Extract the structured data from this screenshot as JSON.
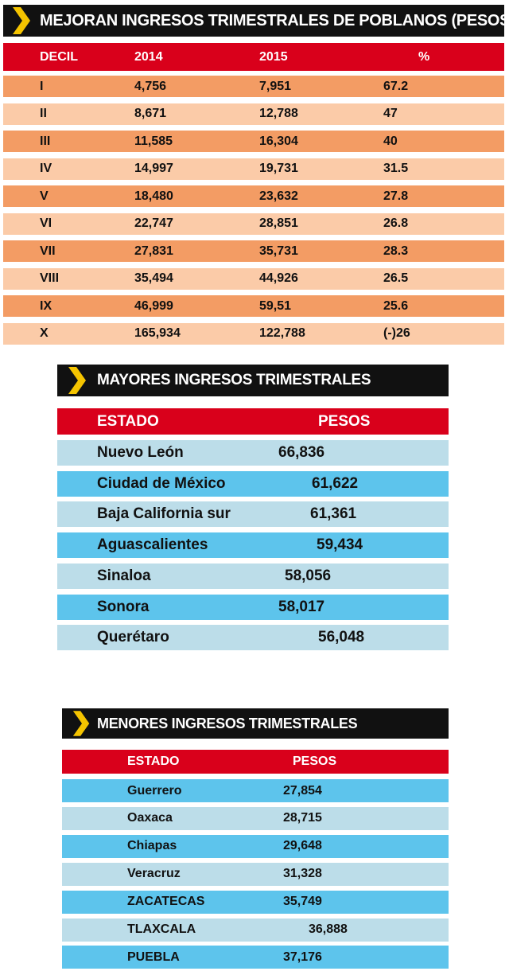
{
  "colors": {
    "dark": "#111111",
    "red": "#d9001b",
    "yellow": "#f5c400",
    "orange_dark": "#f39c64",
    "orange_light": "#fbcba8",
    "blue_dark": "#5dc4ec",
    "blue_light": "#bcdde9"
  },
  "table1": {
    "title": "MEJORAN INGRESOS TRIMESTRALES DE POBLANOS (PESOS)",
    "headers": [
      "DECIL",
      "2014",
      "2015",
      "%"
    ],
    "rows": [
      [
        "I",
        "4,756",
        "7,951",
        "67.2"
      ],
      [
        "II",
        "8,671",
        "12,788",
        "47"
      ],
      [
        "III",
        "11,585",
        "16,304",
        "40"
      ],
      [
        "IV",
        "14,997",
        "19,731",
        "31.5"
      ],
      [
        "V",
        "18,480",
        "23,632",
        "27.8"
      ],
      [
        "VI",
        "22,747",
        "28,851",
        "26.8"
      ],
      [
        "VII",
        "27,831",
        "35,731",
        "28.3"
      ],
      [
        "VIII",
        "35,494",
        "44,926",
        "26.5"
      ],
      [
        "IX",
        "46,999",
        "59,51",
        "25.6"
      ],
      [
        "X",
        "165,934",
        "122,788",
        "(-)26"
      ]
    ]
  },
  "table2": {
    "title": "MAYORES INGRESOS TRIMESTRALES",
    "headers": [
      "ESTADO",
      "PESOS"
    ],
    "rows": [
      [
        "Nuevo León",
        "66,836"
      ],
      [
        "Ciudad de México",
        "61,622"
      ],
      [
        "Baja California sur",
        "61,361"
      ],
      [
        "Aguascalientes",
        "59,434"
      ],
      [
        "Sinaloa",
        "58,056"
      ],
      [
        "Sonora",
        "58,017"
      ],
      [
        "Querétaro",
        "56,048"
      ]
    ]
  },
  "table3": {
    "title": "MENORES INGRESOS TRIMESTRALES",
    "headers": [
      "ESTADO",
      "PESOS"
    ],
    "rows": [
      [
        "Guerrero",
        "27,854"
      ],
      [
        "Oaxaca",
        "28,715"
      ],
      [
        "Chiapas",
        "29,648"
      ],
      [
        "Veracruz",
        "31,328"
      ],
      [
        "ZACATECAS",
        "35,749"
      ],
      [
        "TLAXCALA",
        "36,888"
      ],
      [
        "PUEBLA",
        "37,176"
      ]
    ]
  }
}
